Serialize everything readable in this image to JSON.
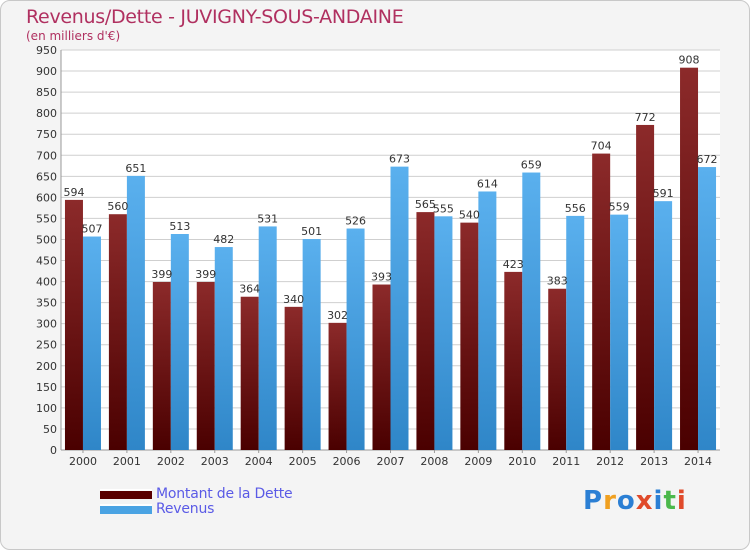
{
  "title": "Revenus/Dette - JUVIGNY-SOUS-ANDAINE",
  "subtitle": "(en milliers d'€)",
  "logo_text": "Proxiti",
  "colors": {
    "dette": "#7a1f1f",
    "revenus": "#4aa3e3",
    "title": "#b03060",
    "legend_text": "#5a5ae6"
  },
  "chart_data": {
    "type": "bar",
    "title": "Revenus/Dette - JUVIGNY-SOUS-ANDAINE",
    "ylabel": "(en milliers d'€)",
    "xlabel": "",
    "ylim": [
      0,
      950
    ],
    "ytick_step": 50,
    "grid": true,
    "legend_position": "bottom-left",
    "categories": [
      "2000",
      "2001",
      "2002",
      "2003",
      "2004",
      "2005",
      "2006",
      "2007",
      "2008",
      "2009",
      "2010",
      "2011",
      "2012",
      "2013",
      "2014"
    ],
    "series": [
      {
        "name": "Montant de la Dette",
        "values": [
          594,
          560,
          399,
          399,
          364,
          340,
          302,
          393,
          565,
          540,
          423,
          383,
          704,
          772,
          908
        ]
      },
      {
        "name": "Revenus",
        "values": [
          507,
          651,
          513,
          482,
          531,
          501,
          526,
          673,
          555,
          614,
          659,
          556,
          559,
          591,
          672
        ]
      }
    ]
  }
}
